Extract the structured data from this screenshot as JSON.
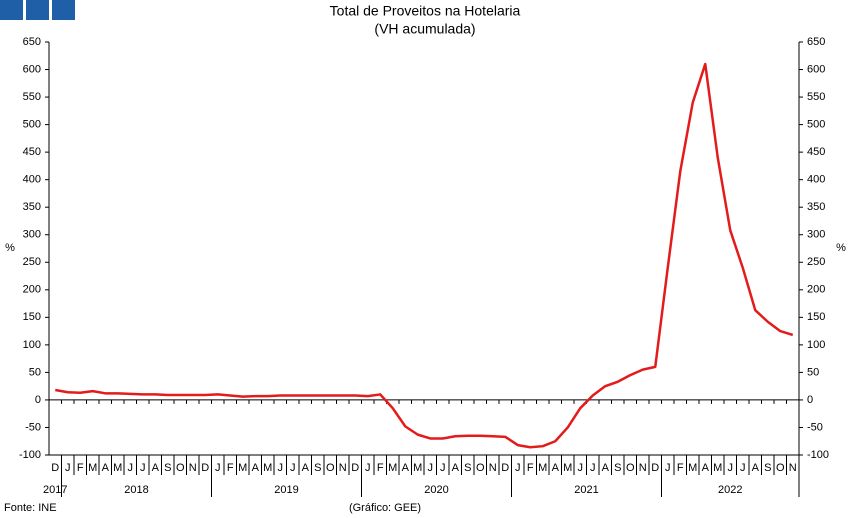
{
  "chart_data": {
    "type": "line",
    "title": "Total de Proveitos na Hotelaria",
    "subtitle": "(VH acumulada)",
    "y_label": "%",
    "y2_label": "%",
    "categories": [
      "D",
      "J",
      "F",
      "M",
      "A",
      "M",
      "J",
      "J",
      "A",
      "S",
      "O",
      "N",
      "D",
      "J",
      "F",
      "M",
      "A",
      "M",
      "J",
      "J",
      "A",
      "S",
      "O",
      "N",
      "D",
      "J",
      "F",
      "M",
      "A",
      "M",
      "J",
      "J",
      "A",
      "S",
      "O",
      "N",
      "D",
      "J",
      "F",
      "M",
      "A",
      "M",
      "J",
      "J",
      "A",
      "S",
      "O",
      "N",
      "D",
      "J",
      "F",
      "M",
      "A",
      "M",
      "J",
      "J",
      "A",
      "S",
      "O",
      "N"
    ],
    "year_groups": [
      {
        "label": "2017",
        "months": 1
      },
      {
        "label": "2018",
        "months": 12
      },
      {
        "label": "2019",
        "months": 12
      },
      {
        "label": "2020",
        "months": 12
      },
      {
        "label": "2021",
        "months": 12
      },
      {
        "label": "2022",
        "months": 11
      }
    ],
    "series": [
      {
        "name": "Total de Proveitos",
        "color": "#e31b1b",
        "values": [
          18,
          14,
          13,
          16,
          12,
          12,
          11,
          10,
          10,
          9,
          9,
          9,
          9,
          10,
          8,
          6,
          7,
          7,
          8,
          8,
          8,
          8,
          8,
          8,
          8,
          7,
          10,
          -15,
          -48,
          -63,
          -70,
          -70,
          -66,
          -65,
          -65,
          -66,
          -67,
          -82,
          -86,
          -84,
          -75,
          -50,
          -15,
          8,
          25,
          33,
          45,
          55,
          60,
          240,
          415,
          540,
          610,
          440,
          308,
          240,
          163,
          142,
          125,
          118
        ]
      }
    ],
    "ylim": [
      -100,
      650
    ],
    "yticks": [
      -100,
      -50,
      0,
      50,
      100,
      150,
      200,
      250,
      300,
      350,
      400,
      450,
      500,
      550,
      600,
      650
    ],
    "y2lim": [
      -100,
      650
    ],
    "y2ticks": [
      -100,
      -50,
      0,
      50,
      100,
      150,
      200,
      250,
      300,
      350,
      400,
      450,
      500,
      550,
      600,
      650
    ],
    "source": "Fonte: INE",
    "credit": "(Gráfico: GEE)"
  }
}
